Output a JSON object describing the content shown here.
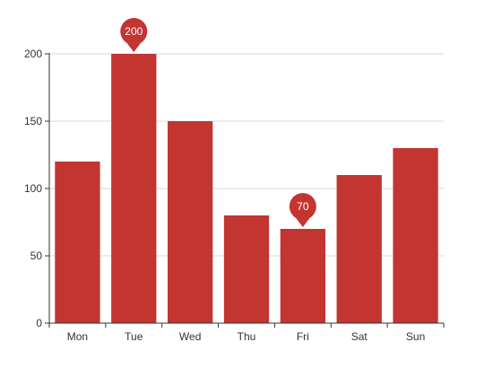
{
  "chart_data": {
    "type": "bar",
    "categories": [
      "Mon",
      "Tue",
      "Wed",
      "Thu",
      "Fri",
      "Sat",
      "Sun"
    ],
    "values": [
      120,
      200,
      150,
      80,
      70,
      110,
      130
    ],
    "ylim": [
      0,
      200
    ],
    "yticks": [
      0,
      50,
      100,
      150,
      200
    ],
    "grid": true,
    "title": "",
    "xlabel": "",
    "ylabel": "",
    "bar_color": "#c23531",
    "grid_color": "#d9d9d9",
    "axis_color": "#333333",
    "markers": [
      {
        "category": "Tue",
        "value": 200,
        "label": "200"
      },
      {
        "category": "Fri",
        "value": 70,
        "label": "70"
      }
    ]
  }
}
